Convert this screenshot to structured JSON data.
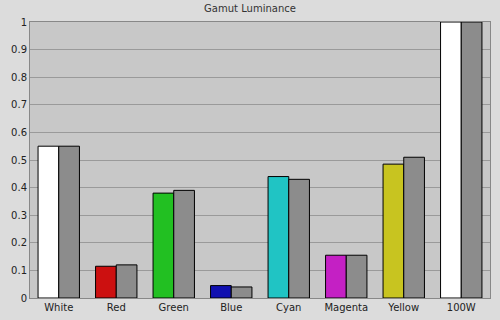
{
  "chart_data": {
    "type": "bar",
    "title": "Gamut Luminance",
    "categories": [
      "White",
      "Red",
      "Green",
      "Blue",
      "Cyan",
      "Magenta",
      "Yellow",
      "100W"
    ],
    "series": [
      {
        "colors": [
          "#ffffff",
          "#cc1010",
          "#22c022",
          "#1010b0",
          "#20c4c4",
          "#c420c4",
          "#c8c420",
          "#ffffff"
        ],
        "values": [
          0.55,
          0.115,
          0.38,
          0.045,
          0.44,
          0.155,
          0.485,
          1.0
        ]
      },
      {
        "color": "#8c8c8c",
        "values": [
          0.55,
          0.12,
          0.39,
          0.04,
          0.43,
          0.155,
          0.51,
          1.0
        ]
      }
    ],
    "ylim": [
      0,
      1
    ],
    "yticks": [
      0,
      0.1,
      0.2,
      0.3,
      0.4,
      0.5,
      0.6,
      0.7,
      0.8,
      0.9,
      1
    ],
    "grid": true
  }
}
